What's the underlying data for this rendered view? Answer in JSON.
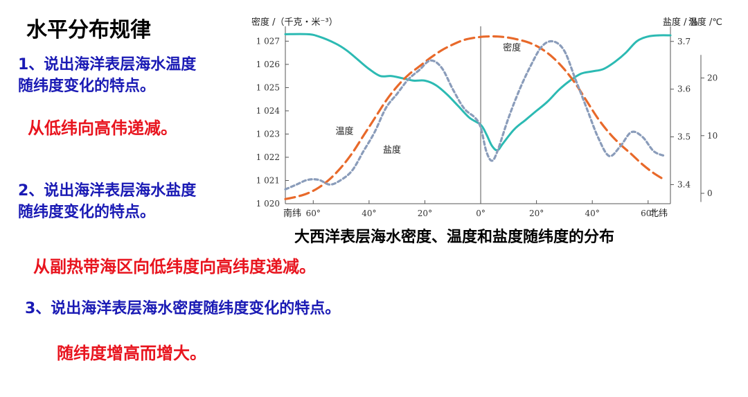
{
  "slide": {
    "title": "水平分布规律",
    "q1": [
      "1、说出海洋表层海水温度",
      "随纬度变化的特点。"
    ],
    "a1": "从低纬向高伟递减。",
    "q2": [
      "2、说出海洋表层海水盐度",
      "随纬度变化的特点。"
    ],
    "a2": "从副热带海区向低纬度向高纬度递减。",
    "q3": "3、说出海洋表层海水密度随纬度变化的特点。",
    "a3": "随纬度增高而增大。"
  },
  "chart_data": {
    "type": "line",
    "caption": "大西洋表层海水密度、温度和盐度随纬度的分布",
    "x_tick_labels": [
      "南纬",
      "60°",
      "40°",
      "20°",
      "0°",
      "20°",
      "40°",
      "60°",
      "北纬"
    ],
    "x_ticks_signed": [
      -60,
      -40,
      -20,
      0,
      20,
      40,
      60
    ],
    "xlim": [
      -70,
      68
    ],
    "left_axis": {
      "label": "密度 /（千克・米⁻³）",
      "ylim": [
        1020,
        1027.4
      ],
      "ticks": [
        1020,
        1021,
        1022,
        1023,
        1024,
        1025,
        1026,
        1027
      ],
      "tick_labels": [
        "1 020",
        "1 021",
        "1 022",
        "1 023",
        "1 024",
        "1 025",
        "1 026",
        "1 027"
      ]
    },
    "salinity_axis": {
      "label": "盐度 / %",
      "ylim": [
        3.36,
        3.72
      ],
      "ticks": [
        3.4,
        3.5,
        3.6,
        3.7
      ],
      "tick_labels": [
        "3.4",
        "3.5",
        "3.6",
        "3.7"
      ]
    },
    "temperature_axis": {
      "label": "温度 /℃",
      "ylim": [
        -1.8,
        28
      ],
      "ticks": [
        0,
        10,
        20
      ],
      "tick_labels": [
        "0",
        "10",
        "20"
      ]
    },
    "series": [
      {
        "name": "密度",
        "axis": "density",
        "color": "#2cbab3",
        "style": "solid",
        "x": [
          -70,
          -62,
          -58,
          -52,
          -48,
          -44,
          -40,
          -36,
          -32,
          -28,
          -24,
          -20,
          -16,
          -12,
          -8,
          -4,
          0,
          2,
          4,
          6,
          8,
          12,
          16,
          20,
          24,
          28,
          32,
          36,
          40,
          44,
          48,
          52,
          56,
          60,
          64,
          68
        ],
        "y": [
          1027.3,
          1027.3,
          1027.2,
          1026.9,
          1026.6,
          1026.2,
          1025.8,
          1025.5,
          1025.5,
          1025.4,
          1025.3,
          1025.3,
          1025.1,
          1024.7,
          1024.2,
          1023.7,
          1023.4,
          1023.0,
          1022.5,
          1022.3,
          1022.6,
          1023.2,
          1023.6,
          1024.0,
          1024.4,
          1024.9,
          1025.3,
          1025.6,
          1025.7,
          1025.8,
          1026.1,
          1026.5,
          1027.0,
          1027.2,
          1027.25,
          1027.25
        ]
      },
      {
        "name": "温度",
        "axis": "temperature",
        "color": "#e8692a",
        "style": "dashed",
        "x": [
          -70,
          -66,
          -62,
          -58,
          -54,
          -50,
          -46,
          -42,
          -38,
          -34,
          -30,
          -26,
          -22,
          -18,
          -14,
          -10,
          -6,
          -2,
          2,
          6,
          10,
          14,
          18,
          22,
          26,
          30,
          34,
          38,
          42,
          46,
          50,
          54,
          58,
          62,
          66
        ],
        "y": [
          -1,
          -0.6,
          0,
          1,
          2.5,
          4.5,
          7,
          10,
          13,
          16,
          18.5,
          20.5,
          22,
          23.5,
          24.8,
          25.8,
          26.6,
          27,
          27.2,
          27.2,
          27,
          26.6,
          26,
          25,
          23.5,
          21.5,
          19,
          16,
          13,
          10.5,
          8.5,
          6.8,
          5,
          3.5,
          2.3
        ]
      },
      {
        "name": "盐度",
        "axis": "salinity",
        "color": "#8a9cba",
        "style": "dotted",
        "x": [
          -70,
          -66,
          -62,
          -58,
          -54,
          -50,
          -46,
          -42,
          -38,
          -34,
          -30,
          -26,
          -22,
          -18,
          -14,
          -10,
          -6,
          -2,
          0,
          2,
          4,
          6,
          10,
          14,
          18,
          22,
          26,
          30,
          34,
          38,
          42,
          46,
          50,
          54,
          58,
          62,
          66
        ],
        "y": [
          3.39,
          3.4,
          3.41,
          3.41,
          3.4,
          3.41,
          3.43,
          3.47,
          3.51,
          3.56,
          3.59,
          3.62,
          3.64,
          3.66,
          3.645,
          3.6,
          3.56,
          3.54,
          3.52,
          3.47,
          3.45,
          3.47,
          3.54,
          3.6,
          3.65,
          3.69,
          3.7,
          3.68,
          3.62,
          3.56,
          3.5,
          3.46,
          3.48,
          3.51,
          3.5,
          3.47,
          3.46
        ]
      }
    ],
    "annotations": [
      {
        "text": "密度",
        "x": 8,
        "y": 1026.6,
        "axis": "density"
      },
      {
        "text": "温度",
        "x": -52,
        "y": 1023.0,
        "axis": "density"
      },
      {
        "text": "盐度",
        "x": -35,
        "y": 1022.2,
        "axis": "density"
      }
    ],
    "grid": false,
    "legend": "none"
  }
}
